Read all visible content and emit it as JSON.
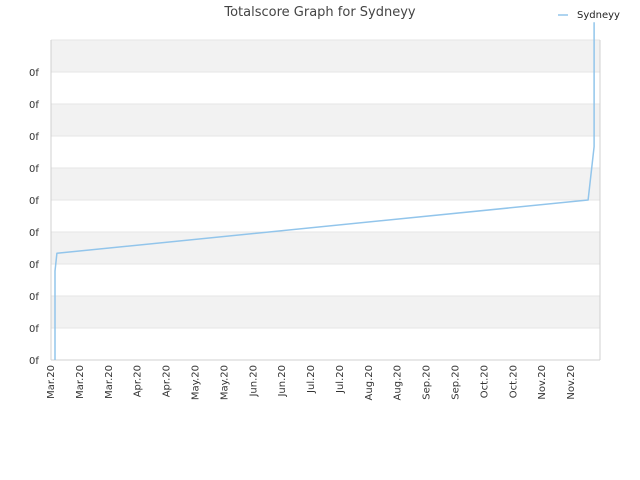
{
  "chart_data": {
    "type": "line",
    "title": "Totalscore Graph for Sydneyy",
    "xlabel": "",
    "ylabel": "",
    "legend": {
      "position": "top-right",
      "entries": [
        "Sydneyy"
      ]
    },
    "grid": true,
    "y_ticks": [
      "0f",
      "0f",
      "0f",
      "0f",
      "0f",
      "0f",
      "0f",
      "0f",
      "0f",
      "0f"
    ],
    "x_ticks": [
      "Mar.20",
      "Mar.20",
      "Mar.20",
      "Apr.20",
      "Apr.20",
      "May.20",
      "May.20",
      "Jun.20",
      "Jun.20",
      "Jul.20",
      "Jul.20",
      "Aug.20",
      "Aug.20",
      "Sep.20",
      "Sep.20",
      "Oct.20",
      "Oct.20",
      "Nov.20",
      "Nov.20"
    ],
    "ylim": [
      0,
      9
    ],
    "series": [
      {
        "name": "Sydneyy",
        "color": "#92c5eb",
        "points": [
          {
            "x": "2020-03-03",
            "y": 0.0
          },
          {
            "x": "2020-03-03",
            "y": 2.5
          },
          {
            "x": "2020-03-04",
            "y": 3.0
          },
          {
            "x": "2020-11-27",
            "y": 4.5
          },
          {
            "x": "2020-11-30",
            "y": 6.0
          },
          {
            "x": "2020-11-30",
            "y": 9.5
          }
        ]
      }
    ]
  },
  "colors": {
    "series": "#92c5eb",
    "band": "#f2f2f2",
    "grid": "#e5e5e5",
    "axis": "#d0d0d0",
    "text": "#333333"
  }
}
